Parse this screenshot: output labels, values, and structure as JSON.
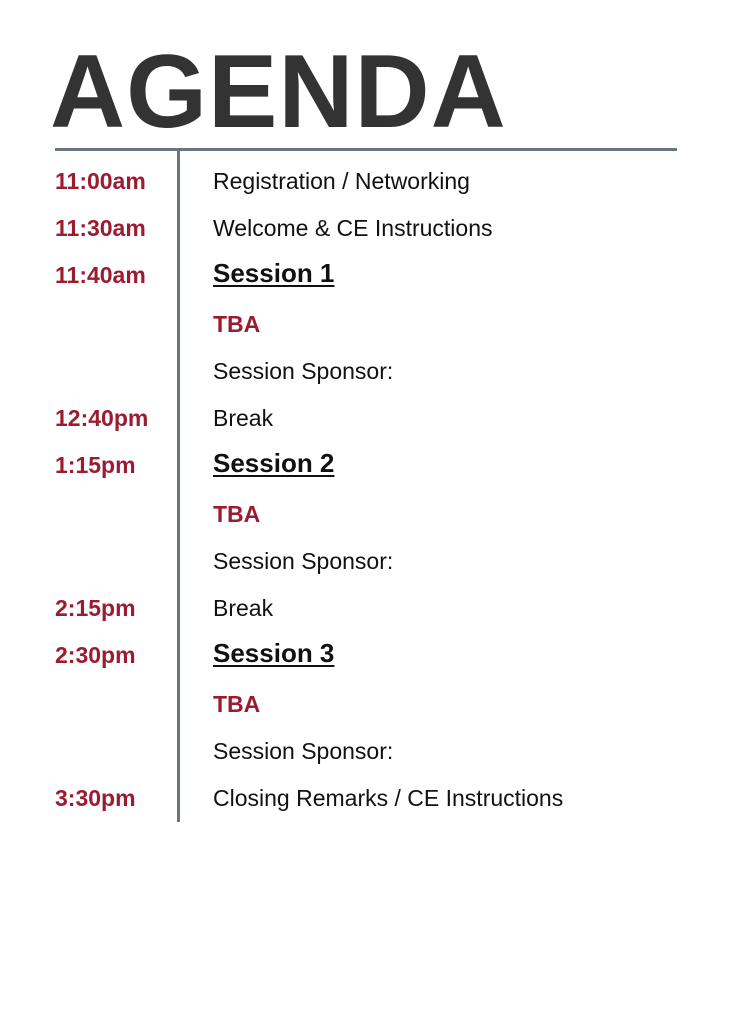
{
  "title": "AGENDA",
  "items": [
    {
      "time": "11:00am",
      "text": "Registration / Networking",
      "style": "normal"
    },
    {
      "time": "11:30am",
      "text": "Welcome & CE Instructions",
      "style": "normal"
    },
    {
      "time": "11:40am",
      "text": "Session 1",
      "style": "heading"
    },
    {
      "time": "",
      "text": "TBA",
      "style": "tba"
    },
    {
      "time": "",
      "text": "Session Sponsor:",
      "style": "normal"
    },
    {
      "time": "12:40pm",
      "text": "Break",
      "style": "normal"
    },
    {
      "time": "1:15pm",
      "text": "Session 2",
      "style": "heading"
    },
    {
      "time": "",
      "text": "TBA",
      "style": "tba"
    },
    {
      "time": "",
      "text": "Session Sponsor:",
      "style": "normal"
    },
    {
      "time": "2:15pm",
      "text": "Break",
      "style": "normal"
    },
    {
      "time": "2:30pm",
      "text": "Session 3",
      "style": "heading"
    },
    {
      "time": "",
      "text": "TBA",
      "style": "tba"
    },
    {
      "time": "",
      "text": "Session Sponsor:",
      "style": "normal"
    },
    {
      "time": "3:30pm",
      "text": "Closing Remarks / CE Instructions",
      "style": "normal"
    }
  ],
  "colors": {
    "accent": "#9b1c31",
    "title": "#333333",
    "rule": "#6b7780",
    "text": "#111111"
  }
}
